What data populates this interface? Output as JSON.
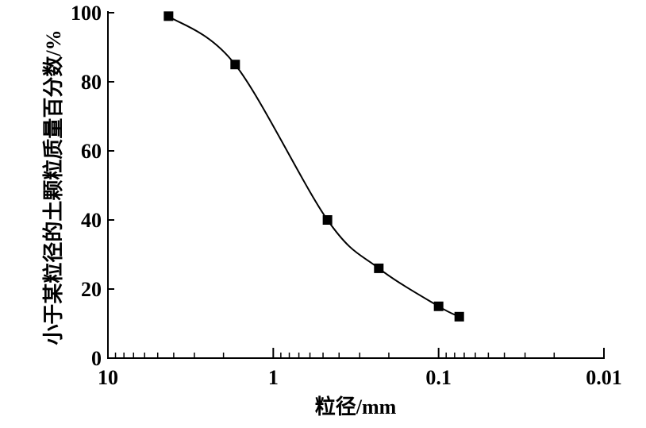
{
  "chart_data": {
    "type": "scatter",
    "title": "",
    "xlabel": "粒径/mm",
    "ylabel": "小于某粒径的土颗粒质量百分数/%",
    "x_scale": "log",
    "x_reversed": true,
    "xlim": [
      10,
      0.01
    ],
    "ylim": [
      0,
      100
    ],
    "x_ticks": [
      10,
      1,
      0.1,
      0.01
    ],
    "x_tick_labels": [
      "10",
      "1",
      "0.1",
      "0.01"
    ],
    "y_ticks": [
      0,
      20,
      40,
      60,
      80,
      100
    ],
    "y_tick_labels": [
      "0",
      "20",
      "40",
      "60",
      "80",
      "100"
    ],
    "grid": false,
    "series": [
      {
        "x": [
          4.3,
          1.7,
          0.47,
          0.23,
          0.1,
          0.075
        ],
        "y": [
          99,
          85,
          40,
          26,
          15,
          12
        ],
        "marker": "square",
        "line": "smooth",
        "color": "#000000"
      }
    ]
  }
}
